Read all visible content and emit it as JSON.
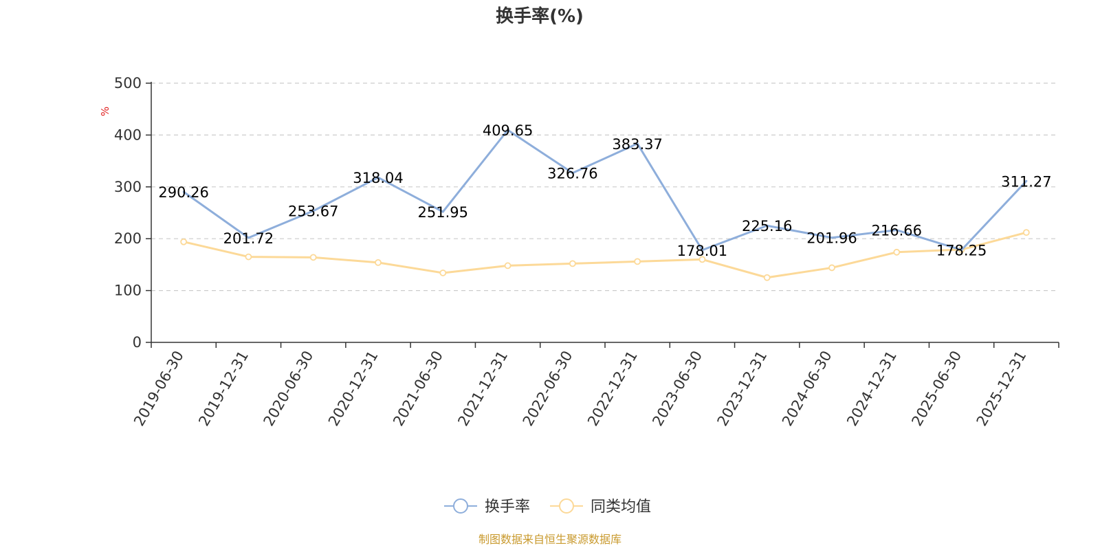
{
  "chart_data": {
    "type": "line",
    "title": "换手率(%)",
    "ylabel": "%",
    "categories": [
      "2019-06-30",
      "2019-12-31",
      "2020-06-30",
      "2020-12-31",
      "2021-06-30",
      "2021-12-31",
      "2022-06-30",
      "2022-12-31",
      "2023-06-30",
      "2023-12-31",
      "2024-06-30",
      "2024-12-31",
      "2025-06-30",
      "2025-12-31"
    ],
    "ylim": [
      0,
      500
    ],
    "yticks": [
      "0",
      "100",
      "200",
      "300",
      "400",
      "500"
    ],
    "grid": true,
    "legend_position": "bottom-center",
    "series": [
      {
        "name": "换手率",
        "color": "#8eaedb",
        "values": [
          290.26,
          201.72,
          253.67,
          318.04,
          251.95,
          409.65,
          326.76,
          383.37,
          178.01,
          225.16,
          201.96,
          216.66,
          178.25,
          311.27
        ],
        "labels": [
          "290.26",
          "201.72",
          "253.67",
          "318.04",
          "251.95",
          "409.65",
          "326.76",
          "383.37",
          "178.01",
          "225.16",
          "201.96",
          "216.66",
          "178.25",
          "311.27"
        ]
      },
      {
        "name": "同类均值",
        "color": "#fcd998",
        "values": [
          194,
          165,
          164,
          154,
          134,
          148,
          152,
          156,
          160,
          125,
          144,
          174,
          179,
          212
        ]
      }
    ]
  },
  "source": {
    "text": "制图数据来自恒生聚源数据库",
    "color": "#c99a2e"
  },
  "unit_color": "#e02020"
}
